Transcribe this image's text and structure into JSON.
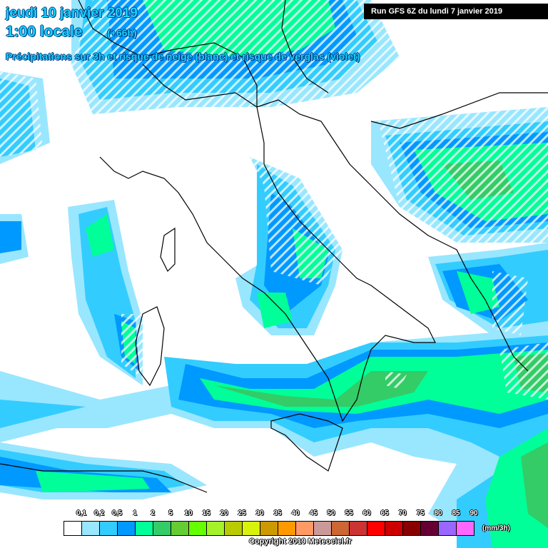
{
  "header": {
    "date": "jeudi 10 janvier 2019",
    "time": "1:00 locale",
    "offset": "(+66h)",
    "subtitle": "Précipitations sur 3h et risque de neige (blanc) et risque de verglas (violet)",
    "run": "Run GFS 6Z du lundi 7 janvier 2019"
  },
  "legend": {
    "labels": [
      "0,1",
      "0,2",
      "0,5",
      "1",
      "2",
      "5",
      "10",
      "15",
      "20",
      "25",
      "30",
      "35",
      "40",
      "45",
      "50",
      "55",
      "60",
      "65",
      "70",
      "75",
      "80",
      "85",
      "90"
    ],
    "colors": [
      "#ffffff",
      "#99e6ff",
      "#33ccff",
      "#0099ff",
      "#00ff99",
      "#33cc66",
      "#66cc33",
      "#66ff00",
      "#a6f22a",
      "#b8cc00",
      "#d8f20c",
      "#cc9900",
      "#ff9900",
      "#ff9966",
      "#cc9999",
      "#cc6633",
      "#cc3333",
      "#ff0000",
      "#cc0000",
      "#880000",
      "#660033",
      "#9966ff",
      "#ff66ff"
    ],
    "unit": "(mm/3h)"
  },
  "copyright": "Copyright 2019 Meteociel.fr"
}
